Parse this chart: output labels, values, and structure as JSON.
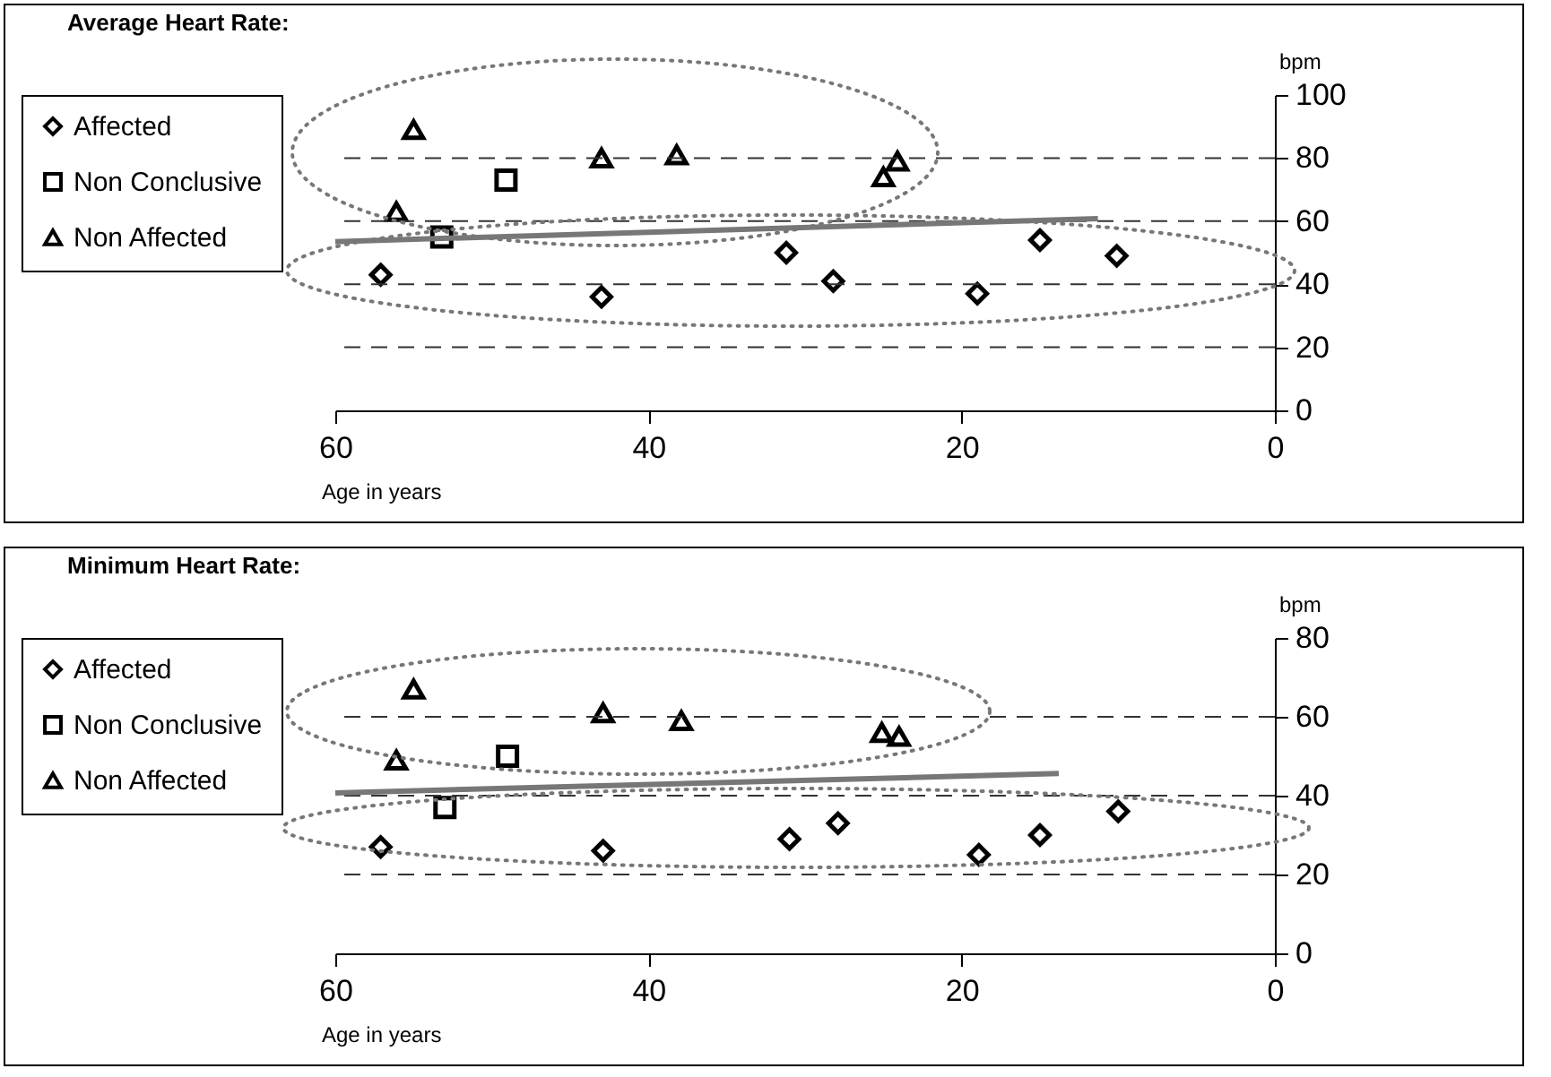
{
  "chart_data": [
    {
      "type": "scatter",
      "title": "Average Heart Rate:",
      "xlabel": "Age in years",
      "ylabel": "bpm",
      "xlim": [
        60,
        0
      ],
      "xticks": [
        60,
        40,
        20,
        0
      ],
      "ylim": [
        0,
        100
      ],
      "yticks": [
        0,
        20,
        40,
        60,
        80,
        100
      ],
      "grid": "y",
      "legend": "left",
      "series": [
        {
          "name": "Affected",
          "color": "#000000",
          "marker": "diamond",
          "x": [
            57.1,
            43.0,
            31.2,
            28.2,
            19.0,
            15.0,
            10.1
          ],
          "values": [
            43,
            36,
            50,
            41,
            37,
            54,
            49
          ]
        },
        {
          "name": "Non Conclusive",
          "color": "#000000",
          "marker": "square",
          "x": [
            49.1,
            53.2
          ],
          "values": [
            73,
            55
          ]
        },
        {
          "name": "Non Affected",
          "color": "#000000",
          "marker": "triangle",
          "x": [
            55.0,
            56.1,
            43.0,
            38.2,
            24.1,
            25.0
          ],
          "values": [
            89,
            63,
            80,
            81,
            79,
            74
          ]
        },
        {
          "type": "line",
          "color": "#777777",
          "marker": "none",
          "x": [
            60,
            11.3
          ],
          "values": [
            53.5,
            60.8
          ]
        }
      ]
    },
    {
      "type": "scatter",
      "title": "Minimum Heart Rate:",
      "xlabel": "Age in years",
      "ylabel": "bpm",
      "xlim": [
        60,
        0
      ],
      "xticks": [
        60,
        40,
        20,
        0
      ],
      "ylim": [
        0,
        80
      ],
      "yticks": [
        0,
        20,
        40,
        60,
        80
      ],
      "grid": "y",
      "legend": "left",
      "series": [
        {
          "name": "Affected",
          "color": "#000000",
          "marker": "diamond",
          "x": [
            57.1,
            42.9,
            31.0,
            27.9,
            18.9,
            15.0,
            10.0
          ],
          "values": [
            27,
            26,
            29,
            33,
            25,
            30,
            36
          ]
        },
        {
          "name": "Non Conclusive",
          "color": "#000000",
          "marker": "square",
          "x": [
            49.0,
            53.0
          ],
          "values": [
            50,
            37
          ]
        },
        {
          "name": "Non Affected",
          "color": "#000000",
          "marker": "triangle",
          "x": [
            55.0,
            56.1,
            42.9,
            37.9,
            25.1,
            24.0
          ],
          "values": [
            67,
            49,
            61,
            59,
            56,
            55
          ]
        },
        {
          "type": "line",
          "color": "#777777",
          "marker": "none",
          "x": [
            60,
            13.8
          ],
          "values": [
            40.7,
            45.6
          ]
        }
      ]
    }
  ]
}
